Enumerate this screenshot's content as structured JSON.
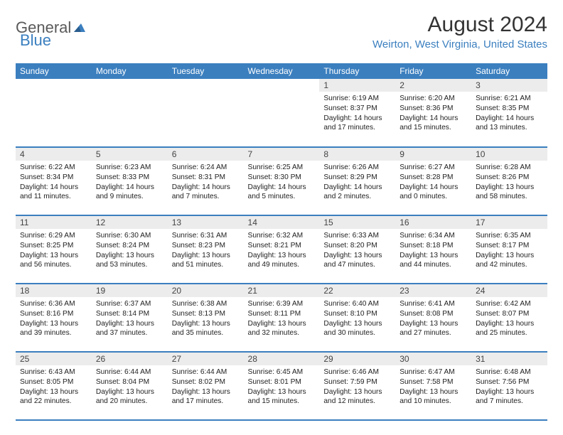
{
  "brand": {
    "part1": "General",
    "part2": "Blue"
  },
  "title": "August 2024",
  "location": "Weirton, West Virginia, United States",
  "colors": {
    "accent": "#3b7fbf",
    "header_bg": "#3b7fbf",
    "header_text": "#ffffff",
    "daynum_bg": "#ececec",
    "text": "#222222",
    "logo_gray": "#5a5a5a"
  },
  "weekdays": [
    "Sunday",
    "Monday",
    "Tuesday",
    "Wednesday",
    "Thursday",
    "Friday",
    "Saturday"
  ],
  "weeks": [
    [
      null,
      null,
      null,
      null,
      {
        "n": "1",
        "sr": "6:19 AM",
        "ss": "8:37 PM",
        "dl": "14 hours and 17 minutes."
      },
      {
        "n": "2",
        "sr": "6:20 AM",
        "ss": "8:36 PM",
        "dl": "14 hours and 15 minutes."
      },
      {
        "n": "3",
        "sr": "6:21 AM",
        "ss": "8:35 PM",
        "dl": "14 hours and 13 minutes."
      }
    ],
    [
      {
        "n": "4",
        "sr": "6:22 AM",
        "ss": "8:34 PM",
        "dl": "14 hours and 11 minutes."
      },
      {
        "n": "5",
        "sr": "6:23 AM",
        "ss": "8:33 PM",
        "dl": "14 hours and 9 minutes."
      },
      {
        "n": "6",
        "sr": "6:24 AM",
        "ss": "8:31 PM",
        "dl": "14 hours and 7 minutes."
      },
      {
        "n": "7",
        "sr": "6:25 AM",
        "ss": "8:30 PM",
        "dl": "14 hours and 5 minutes."
      },
      {
        "n": "8",
        "sr": "6:26 AM",
        "ss": "8:29 PM",
        "dl": "14 hours and 2 minutes."
      },
      {
        "n": "9",
        "sr": "6:27 AM",
        "ss": "8:28 PM",
        "dl": "14 hours and 0 minutes."
      },
      {
        "n": "10",
        "sr": "6:28 AM",
        "ss": "8:26 PM",
        "dl": "13 hours and 58 minutes."
      }
    ],
    [
      {
        "n": "11",
        "sr": "6:29 AM",
        "ss": "8:25 PM",
        "dl": "13 hours and 56 minutes."
      },
      {
        "n": "12",
        "sr": "6:30 AM",
        "ss": "8:24 PM",
        "dl": "13 hours and 53 minutes."
      },
      {
        "n": "13",
        "sr": "6:31 AM",
        "ss": "8:23 PM",
        "dl": "13 hours and 51 minutes."
      },
      {
        "n": "14",
        "sr": "6:32 AM",
        "ss": "8:21 PM",
        "dl": "13 hours and 49 minutes."
      },
      {
        "n": "15",
        "sr": "6:33 AM",
        "ss": "8:20 PM",
        "dl": "13 hours and 47 minutes."
      },
      {
        "n": "16",
        "sr": "6:34 AM",
        "ss": "8:18 PM",
        "dl": "13 hours and 44 minutes."
      },
      {
        "n": "17",
        "sr": "6:35 AM",
        "ss": "8:17 PM",
        "dl": "13 hours and 42 minutes."
      }
    ],
    [
      {
        "n": "18",
        "sr": "6:36 AM",
        "ss": "8:16 PM",
        "dl": "13 hours and 39 minutes."
      },
      {
        "n": "19",
        "sr": "6:37 AM",
        "ss": "8:14 PM",
        "dl": "13 hours and 37 minutes."
      },
      {
        "n": "20",
        "sr": "6:38 AM",
        "ss": "8:13 PM",
        "dl": "13 hours and 35 minutes."
      },
      {
        "n": "21",
        "sr": "6:39 AM",
        "ss": "8:11 PM",
        "dl": "13 hours and 32 minutes."
      },
      {
        "n": "22",
        "sr": "6:40 AM",
        "ss": "8:10 PM",
        "dl": "13 hours and 30 minutes."
      },
      {
        "n": "23",
        "sr": "6:41 AM",
        "ss": "8:08 PM",
        "dl": "13 hours and 27 minutes."
      },
      {
        "n": "24",
        "sr": "6:42 AM",
        "ss": "8:07 PM",
        "dl": "13 hours and 25 minutes."
      }
    ],
    [
      {
        "n": "25",
        "sr": "6:43 AM",
        "ss": "8:05 PM",
        "dl": "13 hours and 22 minutes."
      },
      {
        "n": "26",
        "sr": "6:44 AM",
        "ss": "8:04 PM",
        "dl": "13 hours and 20 minutes."
      },
      {
        "n": "27",
        "sr": "6:44 AM",
        "ss": "8:02 PM",
        "dl": "13 hours and 17 minutes."
      },
      {
        "n": "28",
        "sr": "6:45 AM",
        "ss": "8:01 PM",
        "dl": "13 hours and 15 minutes."
      },
      {
        "n": "29",
        "sr": "6:46 AM",
        "ss": "7:59 PM",
        "dl": "13 hours and 12 minutes."
      },
      {
        "n": "30",
        "sr": "6:47 AM",
        "ss": "7:58 PM",
        "dl": "13 hours and 10 minutes."
      },
      {
        "n": "31",
        "sr": "6:48 AM",
        "ss": "7:56 PM",
        "dl": "13 hours and 7 minutes."
      }
    ]
  ],
  "labels": {
    "sunrise": "Sunrise:",
    "sunset": "Sunset:",
    "daylight": "Daylight:"
  }
}
